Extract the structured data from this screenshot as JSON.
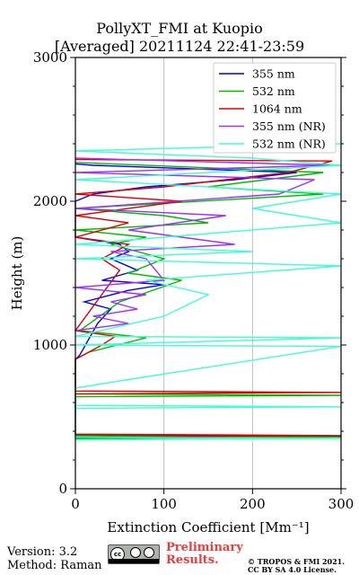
{
  "chart_data": {
    "type": "line",
    "title": "PollyXT_FMI at Kuopio",
    "subtitle": "[Averaged] 20211124 22:41-23:59",
    "xlabel": "Extinction Coefficient [Mm⁻¹]",
    "ylabel": "Height (m)",
    "xlim": [
      0,
      300
    ],
    "ylim": [
      0,
      3000
    ],
    "xticks": [
      "0",
      "100",
      "200",
      "300"
    ],
    "yticks": [
      "0",
      "1000",
      "2000",
      "3000"
    ],
    "grid": "x-major",
    "legend_position": "top-right",
    "series": [
      {
        "name": "355 nm",
        "color": "#0000ee",
        "points": [
          [
            0,
            355
          ],
          [
            300,
            365
          ],
          [
            0,
            375
          ],
          [
            0,
            900
          ],
          [
            5,
            930
          ],
          [
            25,
            1150
          ],
          [
            40,
            1250
          ],
          [
            10,
            1300
          ],
          [
            60,
            1380
          ],
          [
            100,
            1420
          ],
          [
            30,
            1450
          ],
          [
            70,
            1520
          ],
          [
            40,
            1600
          ],
          [
            60,
            1650
          ],
          [
            50,
            1700
          ],
          [
            0,
            1750
          ],
          [
            0,
            2000
          ],
          [
            20,
            2050
          ],
          [
            80,
            2100
          ],
          [
            180,
            2150
          ],
          [
            250,
            2200
          ],
          [
            20,
            2250
          ],
          [
            0,
            2260
          ]
        ]
      },
      {
        "name": "532 nm",
        "color": "#00bb00",
        "points": [
          [
            0,
            350
          ],
          [
            300,
            360
          ],
          [
            0,
            370
          ],
          [
            0,
            640
          ],
          [
            300,
            650
          ],
          [
            0,
            660
          ],
          [
            0,
            900
          ],
          [
            15,
            950
          ],
          [
            80,
            1050
          ],
          [
            5,
            1100
          ],
          [
            50,
            1300
          ],
          [
            120,
            1450
          ],
          [
            60,
            1500
          ],
          [
            100,
            1600
          ],
          [
            40,
            1700
          ],
          [
            80,
            1750
          ],
          [
            0,
            1800
          ],
          [
            150,
            1850
          ],
          [
            100,
            1900
          ],
          [
            0,
            1950
          ],
          [
            280,
            2050
          ],
          [
            150,
            2100
          ],
          [
            280,
            2200
          ],
          [
            0,
            2270
          ]
        ]
      },
      {
        "name": "1064 nm",
        "color": "#dd0000",
        "points": [
          [
            0,
            360
          ],
          [
            300,
            370
          ],
          [
            0,
            380
          ],
          [
            0,
            660
          ],
          [
            300,
            670
          ],
          [
            0,
            680
          ],
          [
            0,
            900
          ],
          [
            30,
            1000
          ],
          [
            45,
            1060
          ],
          [
            0,
            1100
          ],
          [
            50,
            1520
          ],
          [
            30,
            1600
          ],
          [
            60,
            1700
          ],
          [
            0,
            1750
          ],
          [
            60,
            1850
          ],
          [
            0,
            1900
          ],
          [
            120,
            2000
          ],
          [
            0,
            2050
          ],
          [
            100,
            2100
          ],
          [
            240,
            2200
          ],
          [
            290,
            2280
          ],
          [
            0,
            2290
          ]
        ]
      },
      {
        "name": "355 nm (NR)",
        "color": "#9b30ff",
        "points": [
          [
            0,
            1100
          ],
          [
            60,
            1150
          ],
          [
            20,
            1200
          ],
          [
            70,
            1250
          ],
          [
            40,
            1300
          ],
          [
            80,
            1350
          ],
          [
            0,
            1400
          ],
          [
            100,
            1450
          ],
          [
            80,
            1600
          ],
          [
            40,
            1650
          ],
          [
            180,
            1700
          ],
          [
            120,
            1750
          ],
          [
            60,
            1800
          ],
          [
            170,
            1900
          ],
          [
            0,
            1950
          ],
          [
            230,
            2050
          ],
          [
            250,
            2100
          ],
          [
            270,
            2150
          ],
          [
            0,
            2200
          ],
          [
            290,
            2250
          ],
          [
            0,
            2300
          ]
        ]
      },
      {
        "name": "532 nm (NR)",
        "color": "#40ffd0",
        "points": [
          [
            0,
            340
          ],
          [
            300,
            350
          ],
          [
            0,
            360
          ],
          [
            0,
            560
          ],
          [
            300,
            570
          ],
          [
            0,
            580
          ],
          [
            0,
            700
          ],
          [
            50,
            750
          ],
          [
            300,
            990
          ],
          [
            0,
            1000
          ],
          [
            300,
            1050
          ],
          [
            0,
            1060
          ],
          [
            100,
            1200
          ],
          [
            150,
            1350
          ],
          [
            80,
            1450
          ],
          [
            300,
            1550
          ],
          [
            0,
            1600
          ],
          [
            200,
            1650
          ],
          [
            0,
            1700
          ],
          [
            300,
            1850
          ],
          [
            200,
            1950
          ],
          [
            300,
            2050
          ],
          [
            0,
            2150
          ],
          [
            300,
            2250
          ],
          [
            200,
            2300
          ],
          [
            0,
            2350
          ],
          [
            300,
            2400
          ]
        ]
      }
    ]
  },
  "footer": {
    "version": "Version: 3.2",
    "method": "Method: Raman",
    "preliminary_line1": "Preliminary",
    "preliminary_line2": "Results.",
    "copyright_line1": "© TROPOS & FMI 2021.",
    "copyright_line2": "CC BY SA 4.0 License."
  },
  "license_badge": {
    "icon": "cc-by-sa-icon"
  }
}
